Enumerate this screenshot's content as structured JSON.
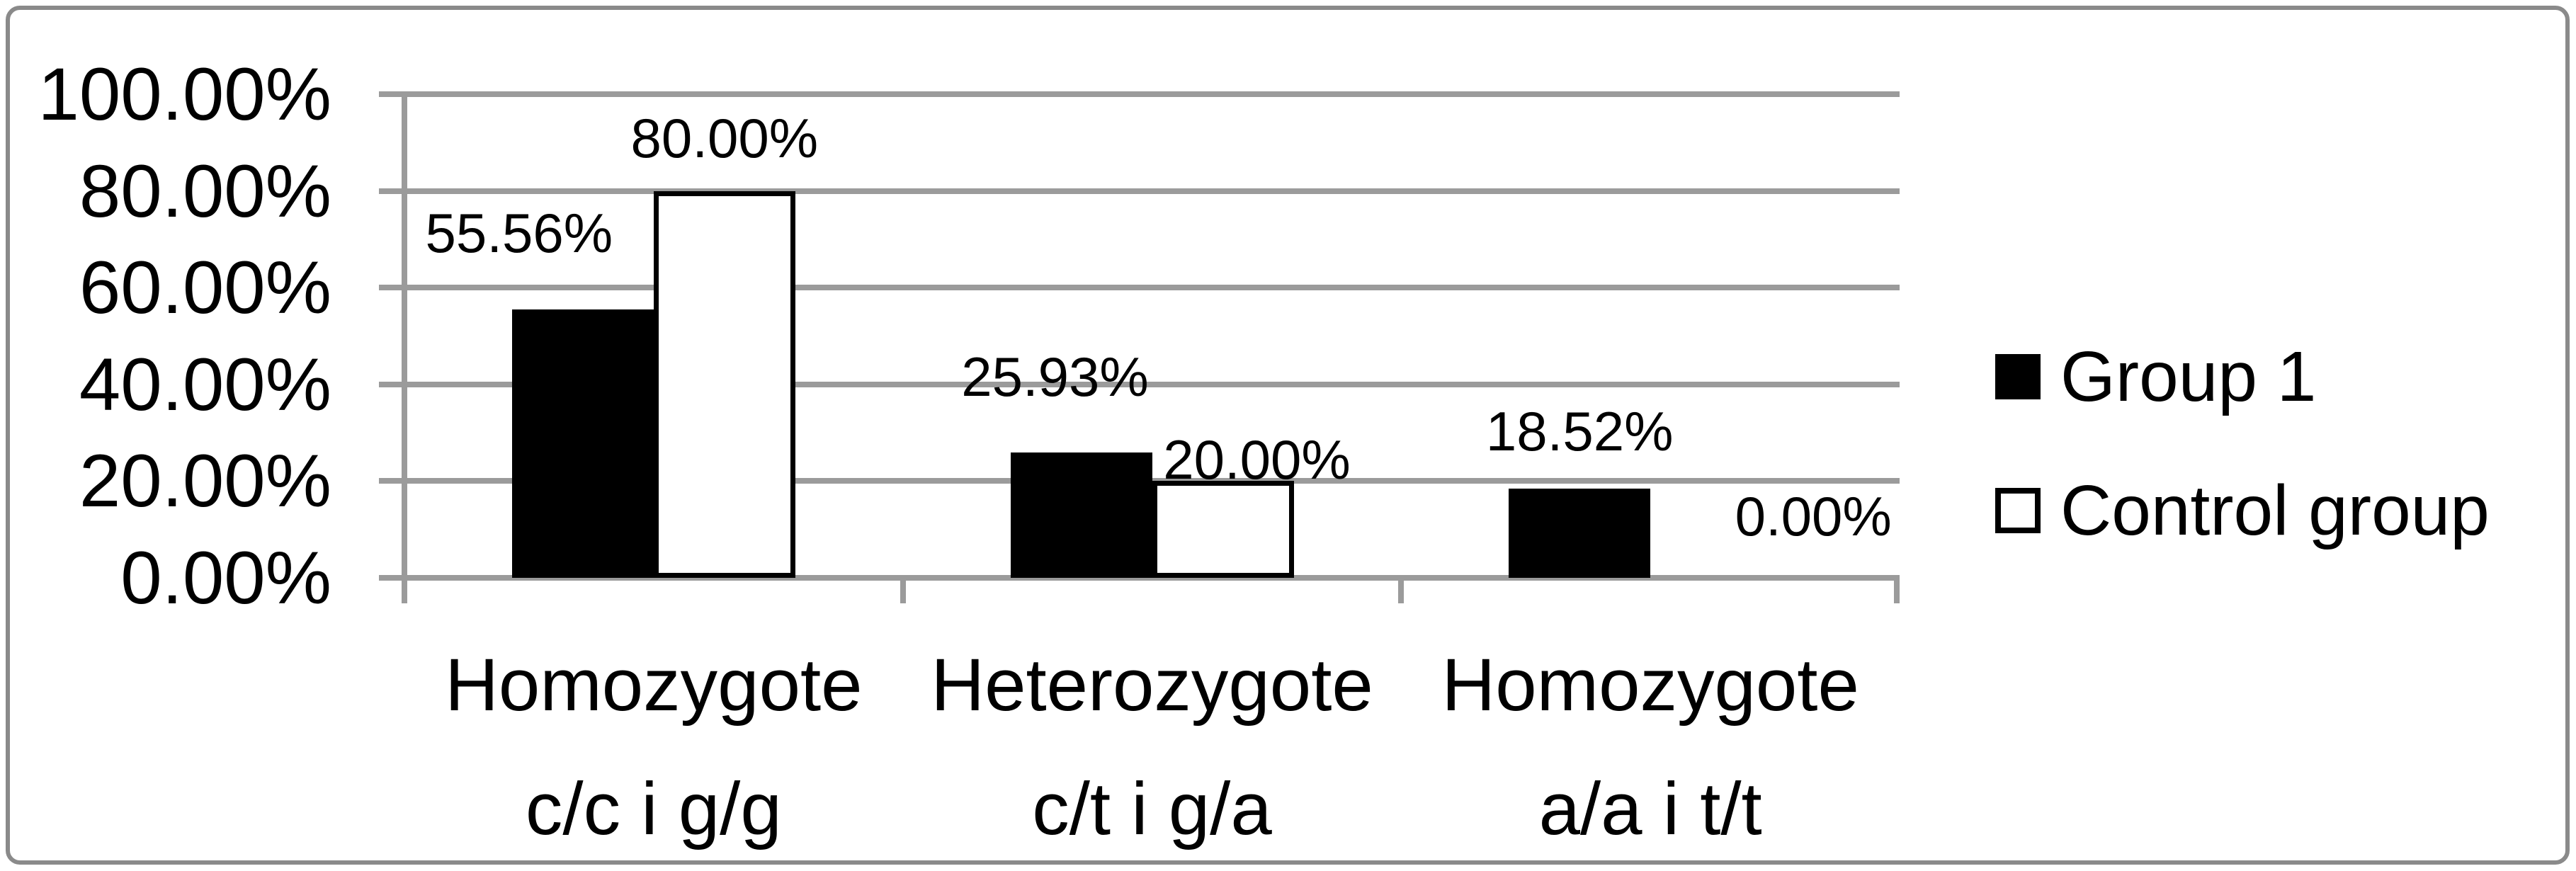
{
  "chart_data": {
    "type": "bar",
    "title": "",
    "categories": [
      "Homozygote c/c i g/g",
      "Heterozygote c/t i g/a",
      "Homozygote a/a i t/t"
    ],
    "category_lines": [
      [
        "Homozygote",
        "c/c i g/g"
      ],
      [
        "Heterozygote",
        "c/t i g/a"
      ],
      [
        "Homozygote",
        "a/a i t/t"
      ]
    ],
    "series": [
      {
        "name": "Group 1",
        "values": [
          55.56,
          25.93,
          18.52
        ],
        "labels": [
          "55.56%",
          "25.93%",
          "18.52%"
        ],
        "fill": "#000000"
      },
      {
        "name": "Control group",
        "values": [
          80.0,
          20.0,
          0.0
        ],
        "labels": [
          "80.00%",
          "20.00%",
          "0.00%"
        ],
        "fill": "#ffffff"
      }
    ],
    "xlabel": "",
    "ylabel": "",
    "ylim": [
      0,
      100
    ],
    "y_ticks": [
      "100.00%",
      "80.00%",
      "60.00%",
      "40.00%",
      "20.00%",
      "0.00%"
    ],
    "grid": true,
    "legend_position": "right",
    "colors": {
      "grid": "#9b9b9b",
      "axis": "#9b9b9b",
      "frame": "#8a8a8a",
      "bar_group1": "#000000",
      "bar_control_fill": "#ffffff",
      "bar_control_border": "#000000",
      "text": "#000000",
      "background": "#ffffff"
    },
    "label_offsets": {
      "dx": [
        [
          -90,
          0
        ],
        [
          -37,
          48
        ],
        [
          0,
          130
        ]
      ],
      "gap": [
        [
          80,
          47
        ],
        [
          79,
          2
        ],
        [
          53,
          59
        ]
      ]
    }
  }
}
